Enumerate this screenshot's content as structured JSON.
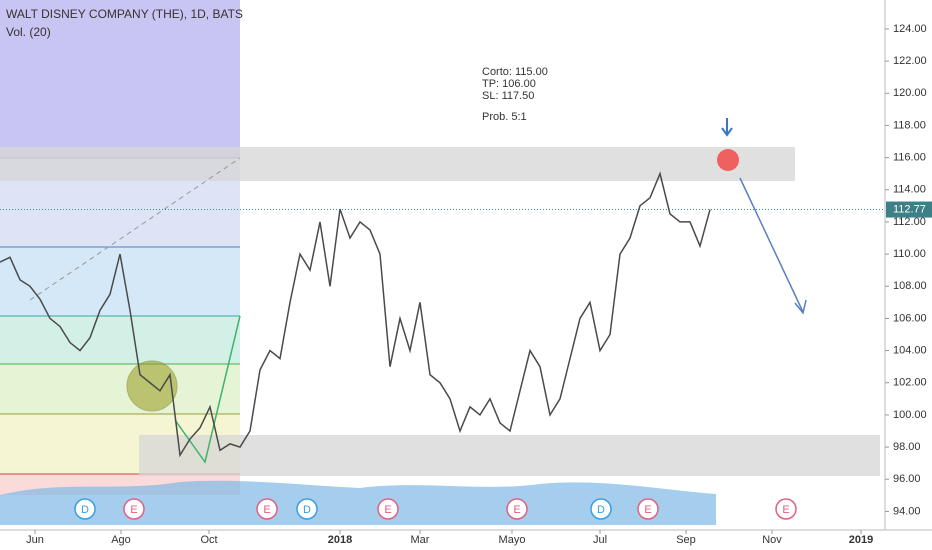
{
  "chart_data": {
    "type": "line",
    "title": "WALT DISNEY COMPANY (THE), 1D, BATS",
    "subtitle": "Vol. (20)",
    "annotation": [
      "Corto: 115.00",
      "TP: 106.00",
      "SL: 117.50",
      "Prob. 5:1"
    ],
    "xlim": [
      0,
      88.5
    ],
    "xticks": [
      {
        "value": 3.5,
        "label": "Jun"
      },
      {
        "value": 12.1,
        "label": "Ago"
      },
      {
        "value": 20.9,
        "label": "Oct"
      },
      {
        "value": 34,
        "label": "2018"
      },
      {
        "value": 42,
        "label": "Mar"
      },
      {
        "value": 51.2,
        "label": "Mayo"
      },
      {
        "value": 60,
        "label": "Jul"
      },
      {
        "value": 68.6,
        "label": "Sep"
      },
      {
        "value": 77.2,
        "label": "Nov"
      },
      {
        "value": 86.1,
        "label": "2019"
      }
    ],
    "ylim": [
      91.6,
      125.8
    ],
    "yticks": [
      {
        "value": 94,
        "label": "94.00"
      },
      {
        "value": 96,
        "label": "96.00"
      },
      {
        "value": 98,
        "label": "98.00"
      },
      {
        "value": 100,
        "label": "100.00"
      },
      {
        "value": 102,
        "label": "102.00"
      },
      {
        "value": 104,
        "label": "104.00"
      },
      {
        "value": 106,
        "label": "106.00"
      },
      {
        "value": 108,
        "label": "108.00"
      },
      {
        "value": 110,
        "label": "110.00"
      },
      {
        "value": 112,
        "label": "112.00"
      },
      {
        "value": 114,
        "label": "114.00"
      },
      {
        "value": 116,
        "label": "116.00"
      },
      {
        "value": 118,
        "label": "118.00"
      },
      {
        "value": 120,
        "label": "120.00"
      },
      {
        "value": 122,
        "label": "122.00"
      },
      {
        "value": 124,
        "label": "124.00"
      }
    ],
    "series": [
      {
        "color": "#4a4a4a",
        "x": [
          0,
          1,
          2,
          3,
          4,
          5,
          6,
          7,
          8,
          9,
          10,
          11,
          12,
          13,
          14,
          15,
          16,
          17,
          18,
          19,
          20,
          21,
          22,
          23,
          24,
          25,
          26,
          27,
          28,
          29,
          30,
          31,
          32,
          33,
          34,
          35,
          36,
          37,
          38,
          39,
          40,
          41,
          42,
          43,
          44,
          45,
          46,
          47,
          48,
          49,
          50,
          51,
          52,
          53,
          54,
          55,
          56,
          57,
          58,
          59,
          60,
          61,
          62,
          63,
          64,
          65,
          66,
          67,
          68,
          69,
          70,
          71
        ],
        "values": [
          109.5,
          109.8,
          108.4,
          108,
          107.2,
          106,
          105.5,
          104.5,
          104,
          104.8,
          106.5,
          107.5,
          110,
          106.5,
          102.5,
          102,
          101.5,
          102.5,
          97.5,
          98.5,
          99.2,
          100.5,
          97.8,
          98.2,
          98,
          99,
          102.8,
          104,
          103.5,
          107,
          110,
          109,
          112,
          108,
          112.8,
          111,
          112,
          111.5,
          110,
          103,
          106,
          104,
          107,
          102.5,
          102,
          101,
          99,
          100.5,
          100,
          101,
          99.5,
          99,
          101.5,
          104,
          103,
          100,
          101,
          103.5,
          106,
          107,
          104,
          105,
          110,
          111,
          113,
          113.5,
          115,
          112.5,
          112,
          112,
          110.5,
          112.77
        ]
      }
    ],
    "events": [
      {
        "x": 8.5,
        "label": "D"
      },
      {
        "x": 13.4,
        "label": "E"
      },
      {
        "x": 26.7,
        "label": "E"
      },
      {
        "x": 30.7,
        "label": "D"
      },
      {
        "x": 38.8,
        "label": "E"
      },
      {
        "x": 51.7,
        "label": "E"
      },
      {
        "x": 60.1,
        "label": "D"
      },
      {
        "x": 64.8,
        "label": "E"
      },
      {
        "x": 78.6,
        "label": "E"
      }
    ]
  }
}
